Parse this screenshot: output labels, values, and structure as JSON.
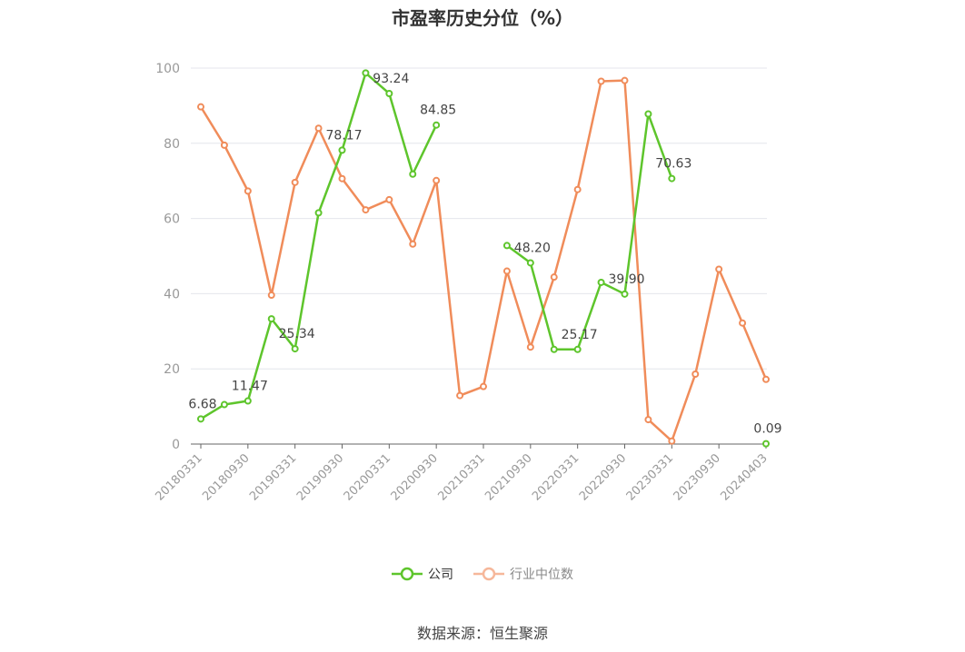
{
  "chart_data": {
    "type": "line",
    "title": "市盈率历史分位（%）",
    "source": "数据来源：恒生聚源",
    "x": [
      "20180331",
      "20180630",
      "20180930",
      "20181231",
      "20190331",
      "20190630",
      "20190930",
      "20191231",
      "20200331",
      "20200630",
      "20200930",
      "20201231",
      "20210331",
      "20210630",
      "20210930",
      "20211231",
      "20220331",
      "20220630",
      "20220930",
      "20221231",
      "20230331",
      "20230630",
      "20230930",
      "20231231",
      "20240403"
    ],
    "x_tick_labels": [
      "20180331",
      "20180930",
      "20190331",
      "20190930",
      "20200331",
      "20200930",
      "20210331",
      "20210930",
      "20220331",
      "20220930",
      "20230331",
      "20230930",
      "20240403"
    ],
    "ylim": [
      0,
      100
    ],
    "y_ticks": [
      0,
      20,
      40,
      60,
      80,
      100
    ],
    "grid": true,
    "legend_position": "bottom",
    "series": [
      {
        "name": "公司",
        "color": "#5ec52c",
        "values": [
          6.68,
          10.5,
          11.47,
          33.3,
          25.34,
          61.5,
          78.17,
          98.7,
          93.24,
          71.8,
          84.85,
          null,
          null,
          52.8,
          48.2,
          25.17,
          25.17,
          43.0,
          39.9,
          87.8,
          70.63,
          null,
          null,
          null,
          0.09
        ],
        "labels": [
          "6.68",
          null,
          "11.47",
          null,
          "25.34",
          null,
          "78.17",
          null,
          "93.24",
          null,
          "84.85",
          null,
          null,
          null,
          "48.20",
          null,
          "25.17",
          null,
          "39.90",
          null,
          "70.63",
          null,
          null,
          null,
          "0.09"
        ]
      },
      {
        "name": "行业中位数",
        "color": "#f08c5a",
        "values": [
          89.7,
          79.5,
          67.3,
          39.6,
          69.6,
          84.0,
          70.6,
          62.3,
          65.0,
          53.2,
          70.1,
          12.9,
          15.3,
          46.0,
          25.8,
          44.4,
          67.7,
          96.5,
          96.7,
          6.5,
          0.8,
          18.6,
          46.5,
          32.2,
          17.2
        ],
        "labels": []
      }
    ]
  }
}
